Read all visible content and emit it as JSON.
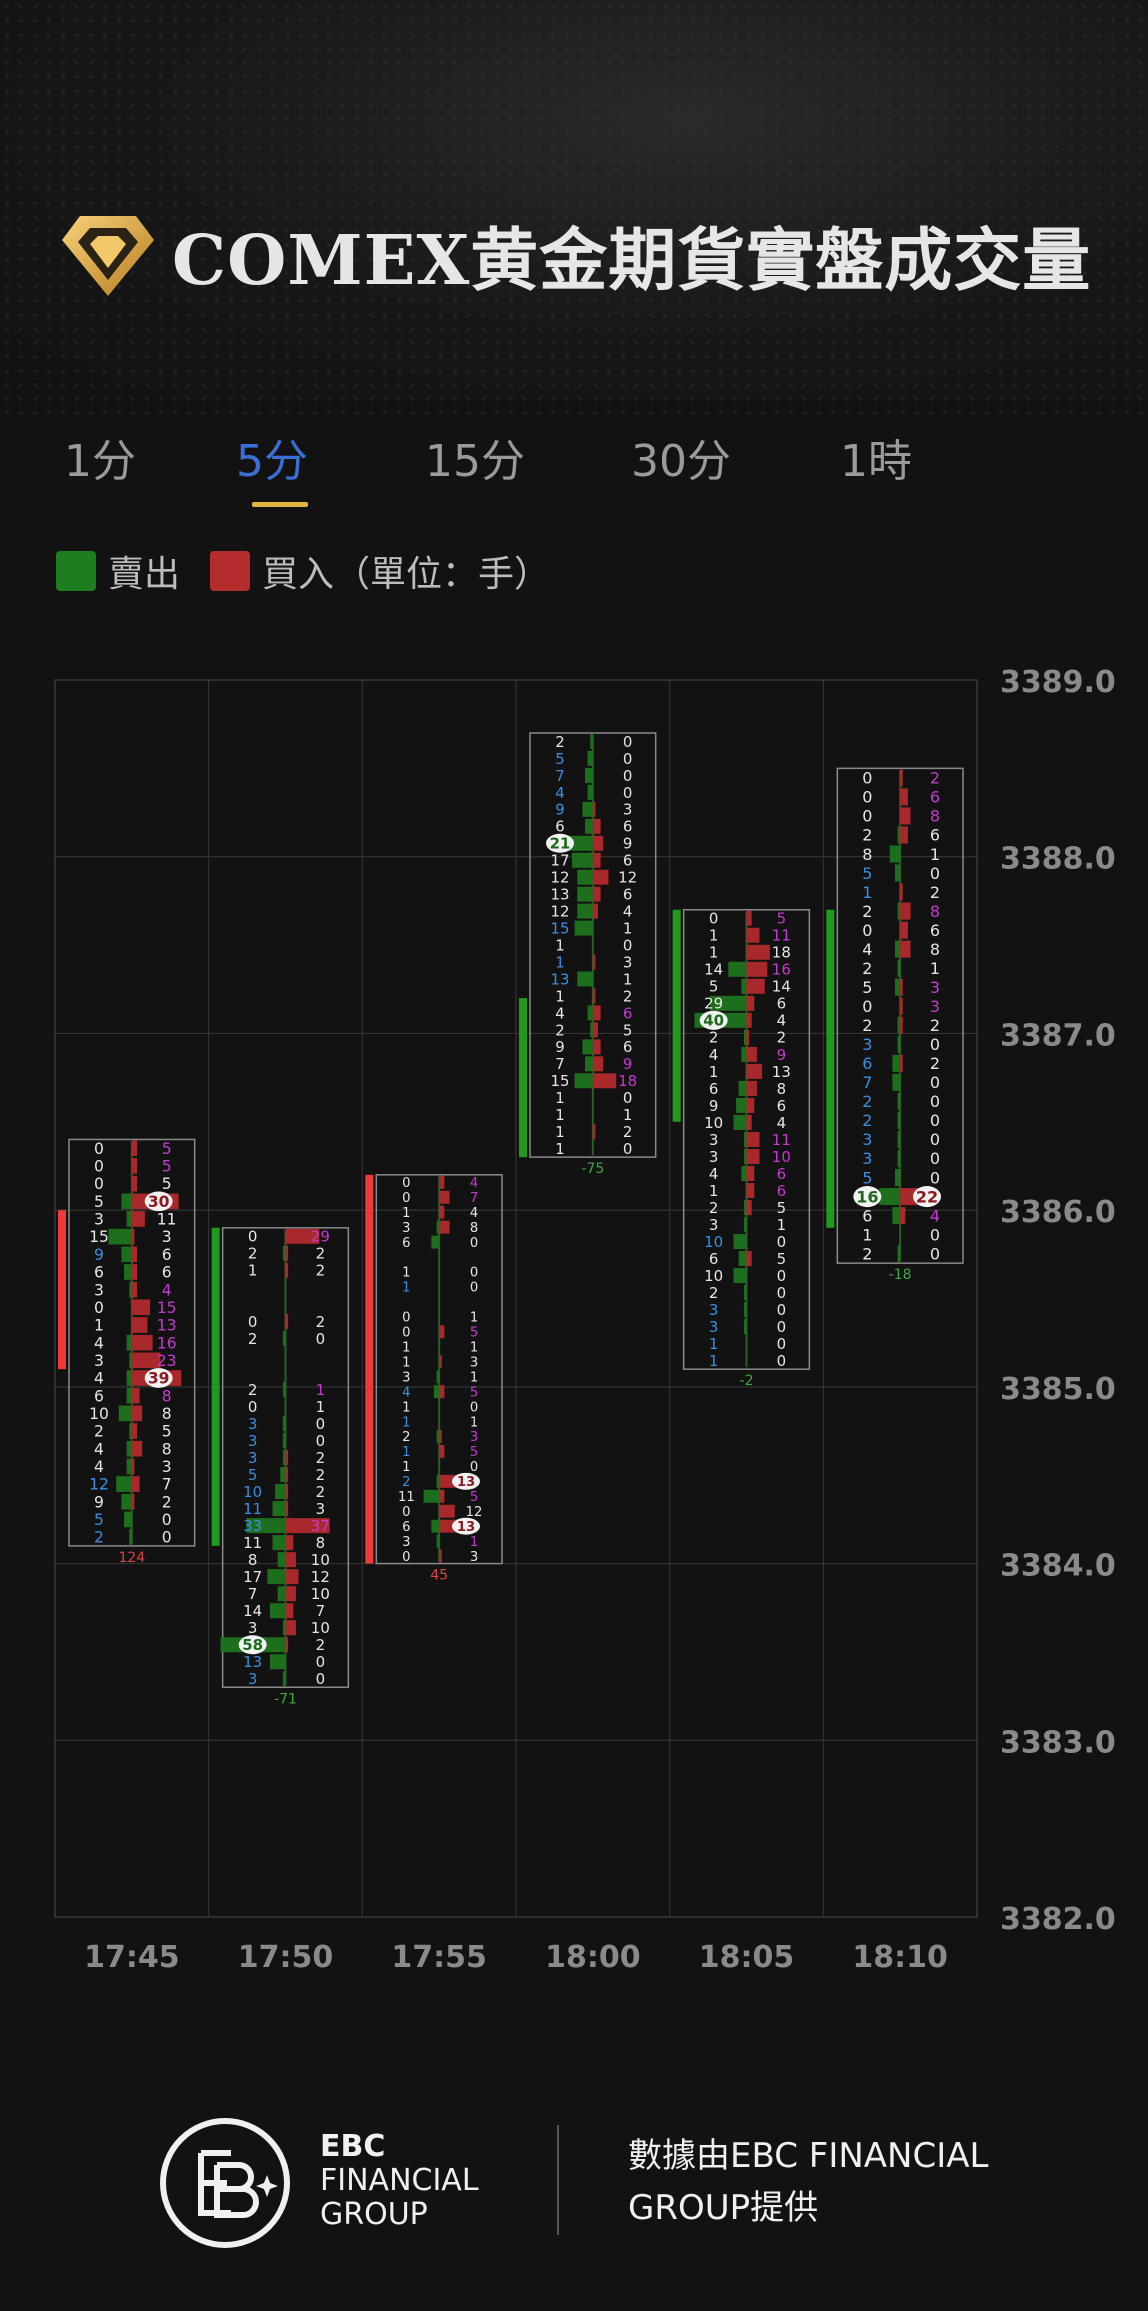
{
  "header": {
    "title": "COMEX黄金期貨實盤成交量"
  },
  "tabs": [
    {
      "label": "1分"
    },
    {
      "label": "5分"
    },
    {
      "label": "15分"
    },
    {
      "label": "30分"
    },
    {
      "label": "1時"
    }
  ],
  "active_tab": 1,
  "legend": {
    "sell_label": "賣出",
    "buy_label": "買入（單位：手）",
    "sell_color": "#1e7d1e",
    "buy_color": "#b52c2c"
  },
  "chart_data": {
    "type": "footprint",
    "y_ticks": [
      "3389.0",
      "3388.0",
      "3387.0",
      "3386.0",
      "3385.0",
      "3384.0",
      "3383.0",
      "3382.0"
    ],
    "ylim": [
      3382.0,
      3389.0
    ],
    "x_labels": [
      "17:45",
      "17:50",
      "17:55",
      "18:00",
      "18:05",
      "18:10"
    ],
    "colors": {
      "up": "#f03a3a",
      "down": "#1f9a1f",
      "buy": "#a8282b",
      "sell": "#1d6e1d",
      "highlight_text": "#c43ad0",
      "blue_text": "#3a8fe0",
      "white_text": "#e6e6e6",
      "delta_neg": "#3ea83e",
      "delta_pos": "#e04040"
    },
    "candles": [
      {
        "time": "17:45",
        "high": 3386.4,
        "low": 3384.1,
        "open": 3385.1,
        "close": 3386.0,
        "delta": "124",
        "sell": [
          "0",
          "0",
          "0",
          "5",
          "3",
          "15",
          "9",
          "6",
          "3",
          "0",
          "1",
          "4",
          "3",
          "4",
          "6",
          "10",
          "2",
          "4",
          "4",
          "12",
          "9",
          "5",
          "2"
        ],
        "buy": [
          "5",
          "5",
          "5",
          "30",
          "11",
          "3",
          "6",
          "6",
          "4",
          "15",
          "13",
          "16",
          "23",
          "39",
          "8",
          "8",
          "5",
          "8",
          "3",
          "7",
          "2",
          "0",
          "0"
        ],
        "sell_style": [
          "w",
          "w",
          "w",
          "w",
          "w",
          "w",
          "b",
          "w",
          "w",
          "w",
          "w",
          "w",
          "w",
          "w",
          "w",
          "w",
          "w",
          "w",
          "w",
          "b",
          "w",
          "b",
          "b"
        ],
        "buy_style": [
          "m",
          "m",
          "w",
          "c",
          "w",
          "w",
          "w",
          "w",
          "m",
          "m",
          "m",
          "m",
          "m",
          "c",
          "m",
          "w",
          "w",
          "w",
          "w",
          "w",
          "w",
          "w",
          "w"
        ],
        "sell_bars": [
          0,
          0,
          0,
          4,
          2,
          9,
          4,
          3,
          1,
          0,
          0,
          2,
          1,
          2,
          2,
          5,
          1,
          2,
          2,
          6,
          4,
          3,
          1
        ],
        "buy_bars": [
          2,
          2,
          2,
          18,
          5,
          1,
          2,
          2,
          2,
          7,
          6,
          8,
          11,
          19,
          3,
          4,
          2,
          4,
          1,
          3,
          1,
          0,
          0
        ]
      },
      {
        "time": "17:50",
        "high": 3385.9,
        "low": 3383.3,
        "open": 3385.9,
        "close": 3384.1,
        "delta": "-71",
        "sell": [
          "0",
          "2",
          "1",
          "",
          "",
          "0",
          "2",
          "",
          "",
          "2",
          "0",
          "3",
          "3",
          "3",
          "5",
          "10",
          "11",
          "33",
          "11",
          "8",
          "17",
          "7",
          "14",
          "3",
          "58",
          "13",
          "3"
        ],
        "buy": [
          "29",
          "2",
          "2",
          "",
          "",
          "2",
          "0",
          "",
          "",
          "1",
          "1",
          "0",
          "0",
          "2",
          "2",
          "2",
          "3",
          "37",
          "8",
          "10",
          "12",
          "10",
          "7",
          "10",
          "2",
          "0",
          "0"
        ],
        "sell_style": [
          "w",
          "w",
          "w",
          "w",
          "w",
          "w",
          "w",
          "w",
          "w",
          "w",
          "w",
          "b",
          "b",
          "b",
          "b",
          "b",
          "b",
          "b",
          "w",
          "w",
          "w",
          "w",
          "w",
          "w",
          "c",
          "b",
          "b"
        ],
        "buy_style": [
          "m",
          "w",
          "w",
          "w",
          "w",
          "w",
          "w",
          "w",
          "w",
          "m",
          "w",
          "w",
          "w",
          "w",
          "w",
          "w",
          "w",
          "m",
          "w",
          "w",
          "w",
          "w",
          "w",
          "w",
          "w",
          "w",
          "w"
        ],
        "sell_bars": [
          0,
          1,
          0,
          0,
          0,
          0,
          1,
          0,
          0,
          1,
          0,
          1,
          1,
          1,
          2,
          4,
          5,
          15,
          5,
          3,
          7,
          3,
          6,
          1,
          25,
          6,
          1
        ],
        "buy_bars": [
          13,
          1,
          1,
          0,
          0,
          1,
          0,
          0,
          0,
          0,
          0,
          0,
          0,
          1,
          1,
          1,
          1,
          17,
          3,
          4,
          5,
          4,
          3,
          4,
          1,
          0,
          0
        ]
      },
      {
        "time": "17:55",
        "high": 3386.2,
        "low": 3384.0,
        "open": 3384.0,
        "close": 3386.2,
        "delta": "45",
        "sell": [
          "0",
          "0",
          "1",
          "3",
          "6",
          "",
          "1",
          "1",
          "",
          "0",
          "0",
          "1",
          "1",
          "3",
          "4",
          "1",
          "1",
          "2",
          "1",
          "1",
          "2",
          "11",
          "0",
          "6",
          "3",
          "0"
        ],
        "buy": [
          "4",
          "7",
          "4",
          "8",
          "0",
          "",
          "0",
          "0",
          "",
          "1",
          "5",
          "1",
          "3",
          "1",
          "5",
          "0",
          "1",
          "3",
          "5",
          "0",
          "13",
          "5",
          "12",
          "13",
          "1",
          "3"
        ],
        "sell_style": [
          "w",
          "w",
          "w",
          "w",
          "w",
          "w",
          "w",
          "b",
          "w",
          "w",
          "w",
          "w",
          "w",
          "w",
          "b",
          "w",
          "b",
          "w",
          "b",
          "w",
          "b",
          "w",
          "w",
          "w",
          "w",
          "w"
        ],
        "buy_style": [
          "m",
          "m",
          "w",
          "w",
          "w",
          "w",
          "w",
          "w",
          "w",
          "w",
          "m",
          "w",
          "w",
          "w",
          "m",
          "w",
          "w",
          "m",
          "m",
          "w",
          "c",
          "m",
          "w",
          "c",
          "m",
          "w"
        ],
        "sell_bars": [
          0,
          0,
          0,
          1,
          3,
          0,
          0,
          0,
          0,
          0,
          0,
          0,
          0,
          1,
          2,
          0,
          0,
          1,
          0,
          0,
          1,
          6,
          0,
          3,
          1,
          0
        ],
        "buy_bars": [
          2,
          4,
          2,
          4,
          0,
          0,
          0,
          0,
          0,
          0,
          2,
          0,
          1,
          0,
          2,
          0,
          0,
          1,
          2,
          0,
          7,
          2,
          6,
          7,
          0,
          1
        ]
      },
      {
        "time": "18:00",
        "high": 3388.7,
        "low": 3386.3,
        "open": 3387.2,
        "close": 3386.3,
        "delta": "-75",
        "sell": [
          "2",
          "5",
          "7",
          "4",
          "9",
          "6",
          "21",
          "17",
          "12",
          "13",
          "12",
          "15",
          "1",
          "1",
          "13",
          "1",
          "4",
          "2",
          "9",
          "7",
          "15",
          "1",
          "1",
          "1",
          "1"
        ],
        "buy": [
          "0",
          "0",
          "0",
          "0",
          "3",
          "6",
          "9",
          "6",
          "12",
          "6",
          "4",
          "1",
          "0",
          "3",
          "1",
          "2",
          "6",
          "5",
          "6",
          "9",
          "18",
          "0",
          "1",
          "2",
          "0"
        ],
        "sell_style": [
          "w",
          "b",
          "b",
          "b",
          "b",
          "w",
          "c",
          "w",
          "w",
          "w",
          "w",
          "b",
          "w",
          "b",
          "b",
          "w",
          "w",
          "w",
          "w",
          "w",
          "w",
          "w",
          "w",
          "w",
          "w"
        ],
        "buy_style": [
          "w",
          "w",
          "w",
          "w",
          "w",
          "w",
          "w",
          "w",
          "w",
          "w",
          "w",
          "w",
          "w",
          "w",
          "w",
          "w",
          "m",
          "w",
          "w",
          "m",
          "m",
          "w",
          "w",
          "w",
          "w"
        ],
        "sell_bars": [
          1,
          2,
          3,
          2,
          4,
          3,
          10,
          8,
          6,
          6,
          6,
          7,
          0,
          0,
          6,
          0,
          2,
          1,
          4,
          3,
          7,
          0,
          0,
          0,
          0
        ],
        "buy_bars": [
          0,
          0,
          0,
          0,
          1,
          3,
          4,
          3,
          6,
          3,
          2,
          0,
          0,
          1,
          0,
          1,
          3,
          2,
          3,
          4,
          9,
          0,
          0,
          1,
          0
        ]
      },
      {
        "time": "18:05",
        "high": 3387.7,
        "low": 3385.1,
        "open": 3387.7,
        "close": 3386.5,
        "delta": "-2",
        "sell": [
          "0",
          "1",
          "1",
          "14",
          "5",
          "29",
          "40",
          "2",
          "4",
          "1",
          "6",
          "9",
          "10",
          "3",
          "3",
          "4",
          "1",
          "2",
          "3",
          "10",
          "6",
          "10",
          "2",
          "3",
          "3",
          "1",
          "1"
        ],
        "buy": [
          "5",
          "11",
          "18",
          "16",
          "14",
          "6",
          "4",
          "2",
          "9",
          "13",
          "8",
          "6",
          "4",
          "11",
          "10",
          "6",
          "6",
          "5",
          "1",
          "0",
          "5",
          "0",
          "0",
          "0",
          "0",
          "0",
          "0"
        ],
        "sell_style": [
          "w",
          "w",
          "w",
          "w",
          "w",
          "w",
          "c",
          "w",
          "w",
          "w",
          "w",
          "w",
          "w",
          "w",
          "w",
          "w",
          "w",
          "w",
          "w",
          "b",
          "w",
          "w",
          "w",
          "b",
          "b",
          "b",
          "b"
        ],
        "buy_style": [
          "m",
          "m",
          "w",
          "m",
          "w",
          "w",
          "w",
          "w",
          "m",
          "w",
          "w",
          "w",
          "w",
          "m",
          "m",
          "m",
          "m",
          "w",
          "w",
          "w",
          "w",
          "w",
          "w",
          "w",
          "w",
          "w",
          "w"
        ],
        "sell_bars": [
          0,
          0,
          0,
          7,
          2,
          14,
          20,
          1,
          2,
          0,
          3,
          4,
          5,
          1,
          1,
          2,
          0,
          1,
          1,
          5,
          3,
          5,
          1,
          1,
          1,
          0,
          0
        ],
        "buy_bars": [
          2,
          5,
          9,
          8,
          7,
          3,
          2,
          1,
          4,
          6,
          4,
          3,
          2,
          5,
          5,
          3,
          3,
          2,
          0,
          0,
          2,
          0,
          0,
          0,
          0,
          0,
          0
        ]
      },
      {
        "time": "18:10",
        "high": 3388.5,
        "low": 3385.7,
        "open": 3387.7,
        "close": 3385.9,
        "delta": "-18",
        "sell": [
          "0",
          "0",
          "0",
          "2",
          "8",
          "5",
          "1",
          "2",
          "0",
          "4",
          "2",
          "5",
          "0",
          "2",
          "3",
          "6",
          "7",
          "2",
          "2",
          "3",
          "3",
          "5",
          "16",
          "6",
          "1",
          "2"
        ],
        "buy": [
          "2",
          "6",
          "8",
          "6",
          "1",
          "0",
          "2",
          "8",
          "6",
          "8",
          "1",
          "3",
          "3",
          "2",
          "0",
          "2",
          "0",
          "0",
          "0",
          "0",
          "0",
          "0",
          "22",
          "4",
          "0",
          "0"
        ],
        "sell_style": [
          "w",
          "w",
          "w",
          "w",
          "w",
          "b",
          "b",
          "w",
          "w",
          "w",
          "w",
          "w",
          "w",
          "w",
          "b",
          "b",
          "b",
          "b",
          "b",
          "b",
          "b",
          "b",
          "c",
          "w",
          "w",
          "w"
        ],
        "buy_style": [
          "m",
          "m",
          "m",
          "w",
          "w",
          "w",
          "w",
          "m",
          "w",
          "w",
          "w",
          "m",
          "m",
          "w",
          "w",
          "w",
          "w",
          "w",
          "w",
          "w",
          "w",
          "w",
          "c",
          "m",
          "w",
          "w"
        ],
        "sell_bars": [
          0,
          0,
          0,
          1,
          4,
          2,
          0,
          1,
          0,
          2,
          1,
          2,
          0,
          1,
          1,
          3,
          3,
          1,
          1,
          1,
          1,
          2,
          8,
          3,
          0,
          1
        ],
        "buy_bars": [
          1,
          3,
          4,
          3,
          0,
          0,
          1,
          4,
          3,
          4,
          0,
          1,
          1,
          1,
          0,
          1,
          0,
          0,
          0,
          0,
          0,
          0,
          11,
          2,
          0,
          0
        ]
      }
    ]
  },
  "footer": {
    "brand_line1": "EBC",
    "brand_line2": "FINANCIAL",
    "brand_line3": "GROUP",
    "credit": "數據由EBC FINANCIAL GROUP提供"
  }
}
